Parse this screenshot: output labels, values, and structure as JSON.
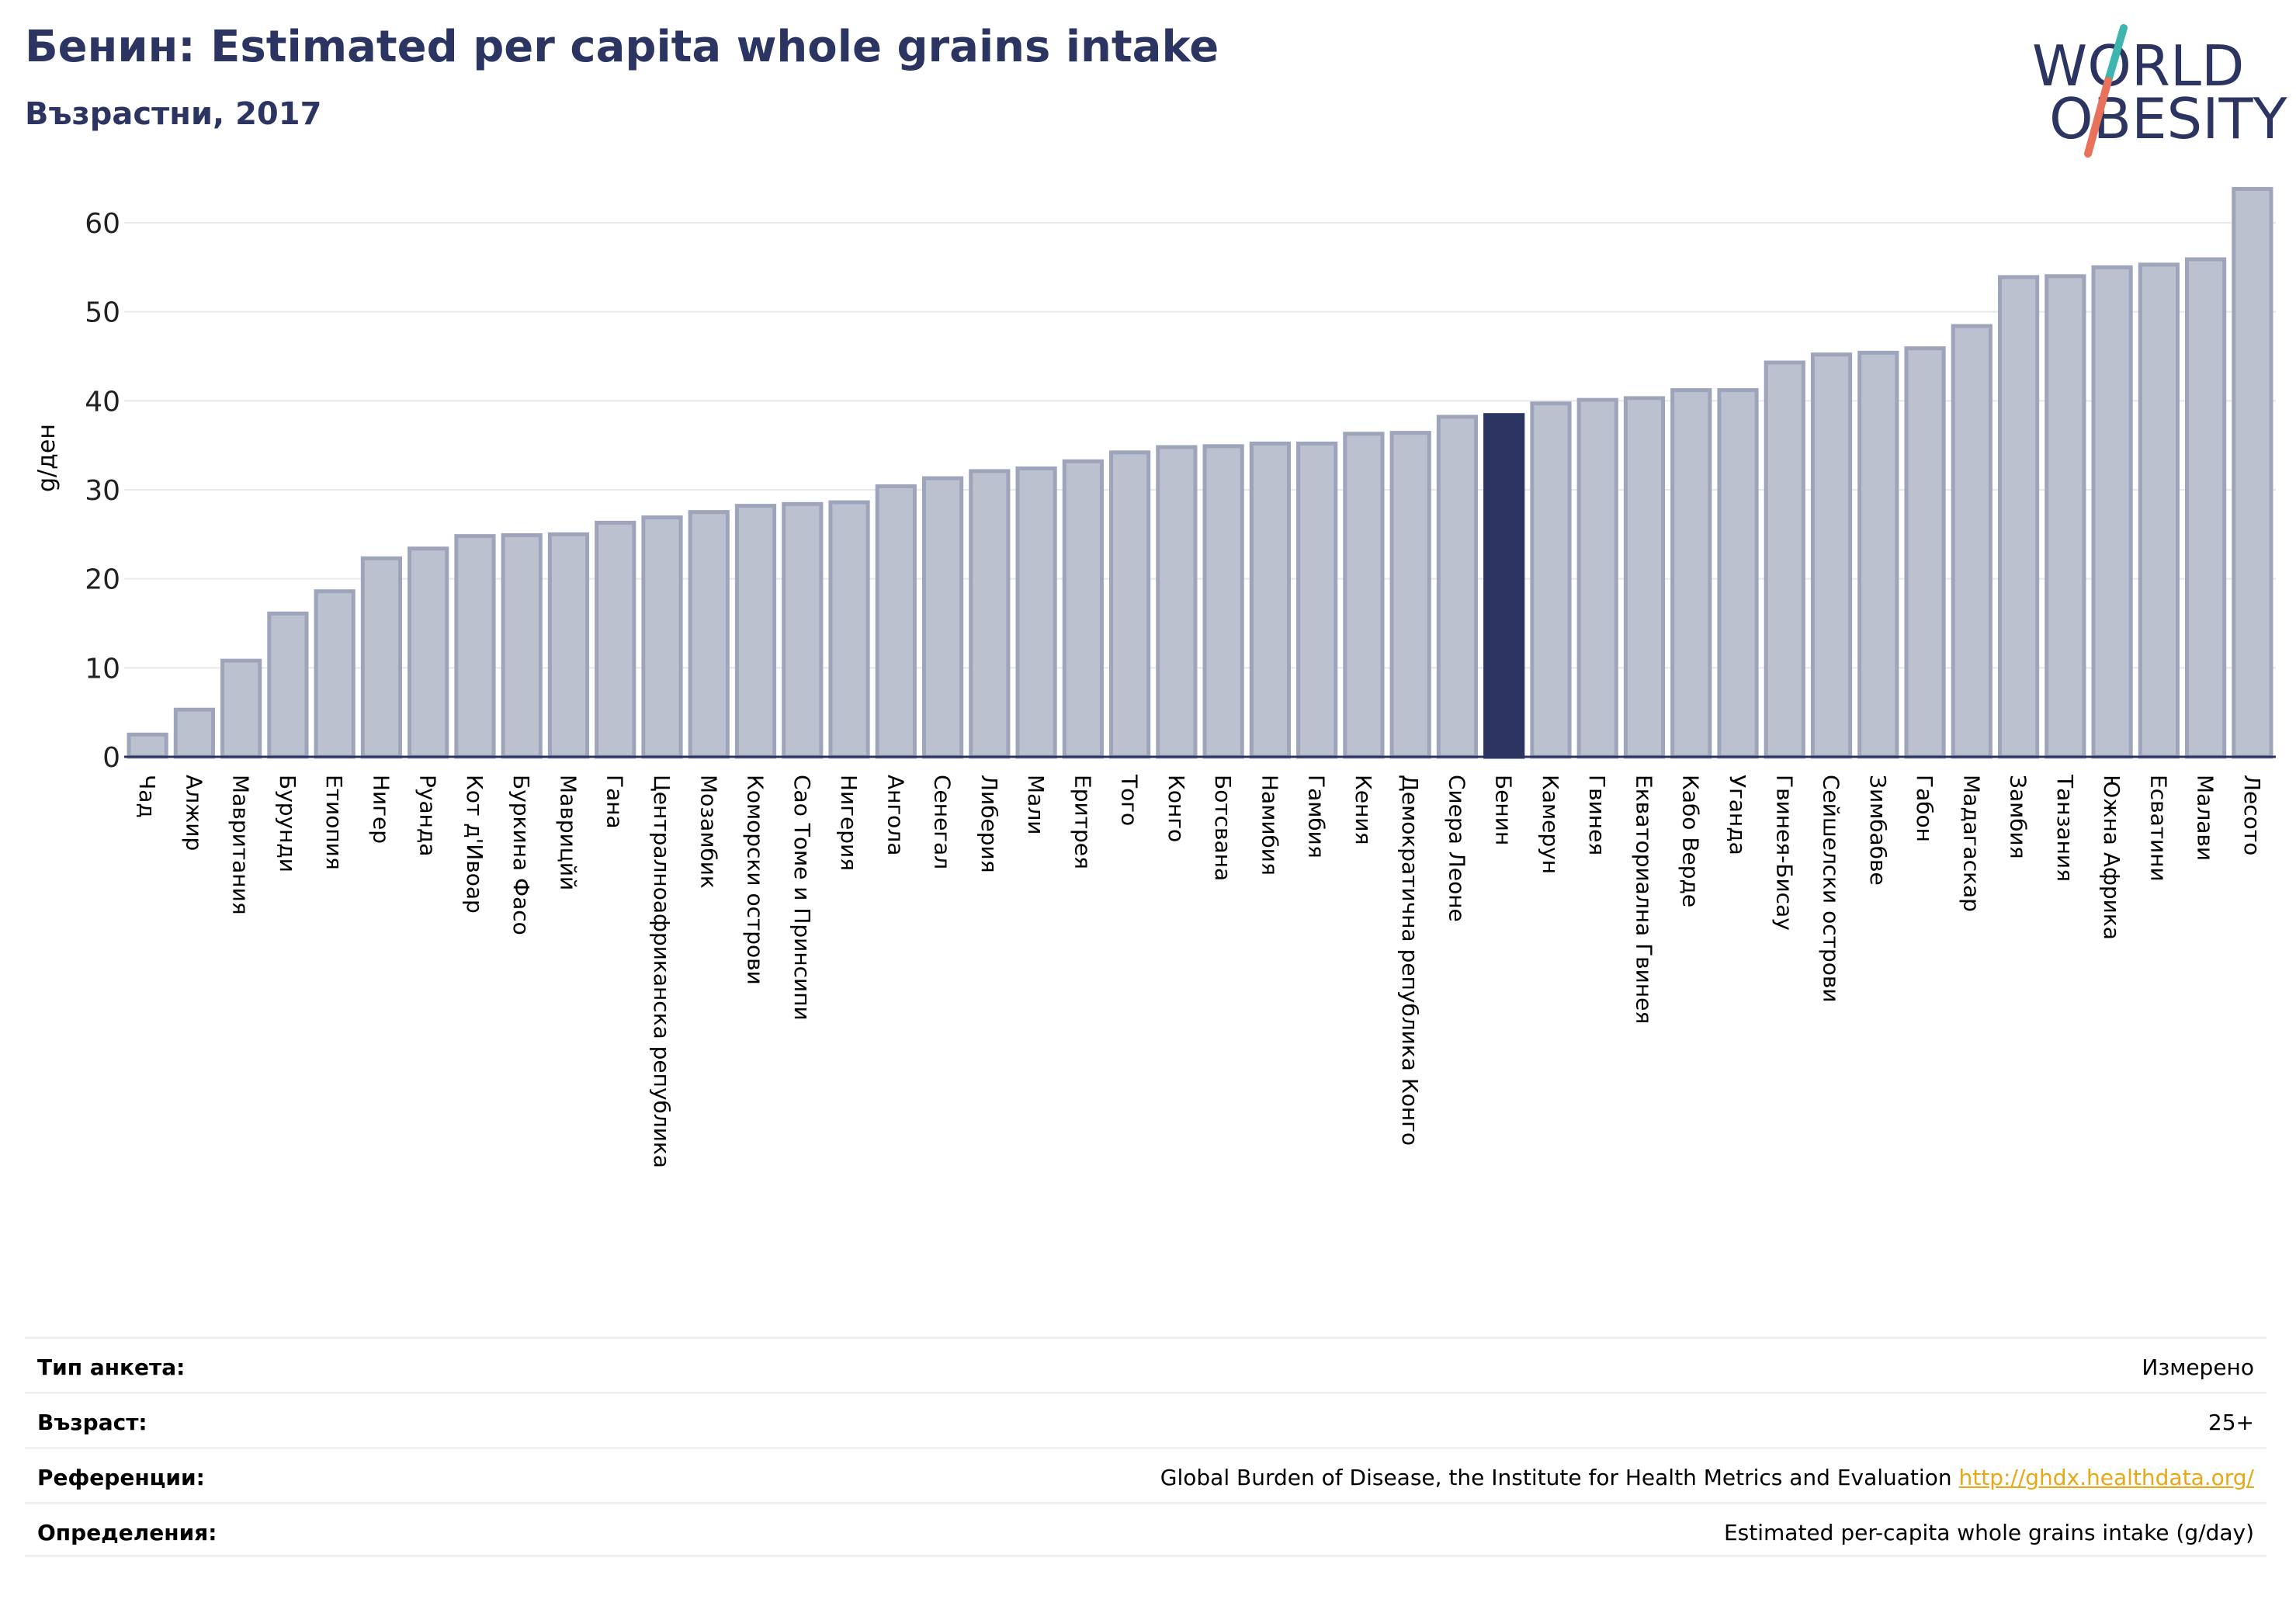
{
  "header": {
    "title": "Бенин: Estimated per capita whole grains intake",
    "subtitle": "Възрастни, 2017"
  },
  "logo": {
    "line1": "WORLD",
    "line2": "OBESITY"
  },
  "colors": {
    "bar": "#bcc1cf",
    "bar_stroke": "#9ea4ba",
    "highlight": "#2c3561",
    "text_dark": "#2c3561",
    "logo_teal": "#3fb5b0",
    "logo_coral": "#e8725c",
    "link": "#e6a817"
  },
  "chart_data": {
    "type": "bar",
    "ylabel": "g/ден",
    "ylim": [
      0,
      65
    ],
    "yticks": [
      0,
      10,
      20,
      30,
      40,
      50,
      60
    ],
    "grid": true,
    "highlight": "Бенин",
    "categories": [
      "Чад",
      "Алжир",
      "Мавритания",
      "Бурунди",
      "Етиопия",
      "Нигер",
      "Руанда",
      "Кот д'Ивоар",
      "Буркина Фасо",
      "Маврицйй",
      "Гана",
      "Централноафриканска република",
      "Мозамбик",
      "Коморски острови",
      "Сао Томе и Принсипи",
      "Нигерия",
      "Ангола",
      "Сенегал",
      "Либерия",
      "Мали",
      "Еритрея",
      "Того",
      "Конго",
      "Ботсвана",
      "Намибия",
      "Гамбия",
      "Кения",
      "Демократична република Конго",
      "Сиера Леоне",
      "Бенин",
      "Камерун",
      "Гвинея",
      "Екваториална Гвинея",
      "Кабо Верде",
      "Уганда",
      "Гвинея-Бисау",
      "Сейшелски острови",
      "Зимбабве",
      "Габон",
      "Мадагаскар",
      "Замбия",
      "Танзания",
      "Южна Африка",
      "Есватини",
      "Малави",
      "Лесото"
    ],
    "values": [
      2.5,
      5.3,
      10.8,
      16.1,
      18.6,
      22.3,
      23.4,
      24.8,
      24.9,
      25.0,
      26.3,
      26.9,
      27.5,
      28.2,
      28.4,
      28.6,
      30.4,
      31.3,
      32.1,
      32.4,
      33.2,
      34.2,
      34.8,
      34.9,
      35.2,
      35.2,
      36.3,
      36.4,
      38.2,
      38.4,
      39.7,
      40.1,
      40.3,
      41.2,
      41.2,
      44.3,
      45.2,
      45.4,
      45.9,
      48.4,
      53.9,
      54.0,
      55.0,
      55.3,
      55.9,
      63.8
    ]
  },
  "info": {
    "rows": [
      {
        "label": "Тип анкета:",
        "value": "Измерено"
      },
      {
        "label": "Възраст:",
        "value": "25+"
      },
      {
        "label": "Референции:",
        "value": "Global Burden of Disease, the Institute for Health Metrics and Evaluation",
        "link": "http://ghdx.healthdata.org/"
      },
      {
        "label": "Определения:",
        "value": "Estimated per-capita whole grains intake (g/day)"
      }
    ]
  }
}
